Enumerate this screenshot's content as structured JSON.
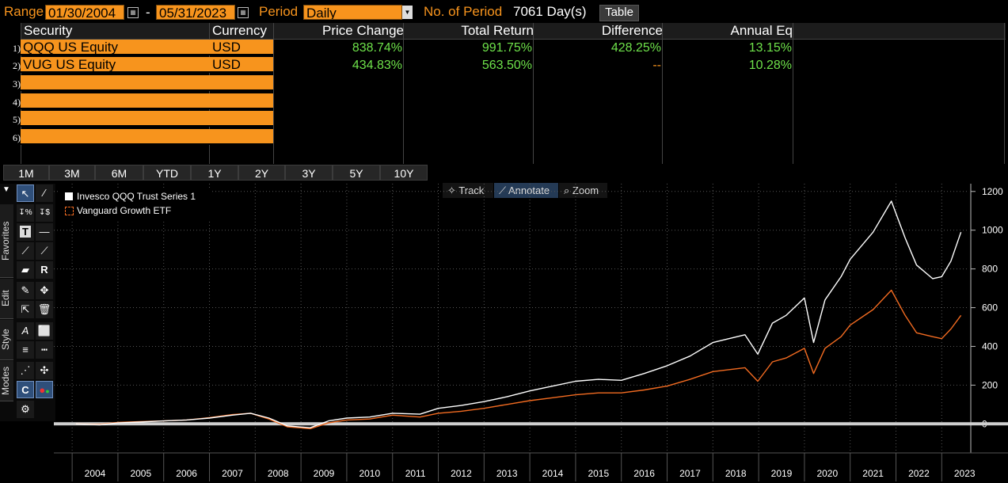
{
  "header": {
    "range_label": "Range",
    "start_date": "01/30/2004",
    "date_sep": "-",
    "end_date": "05/31/2023",
    "period_label": "Period",
    "period_value": "Daily",
    "num_period_label": "No. of Period",
    "num_period_value": "7061 Day(s)",
    "table_button": "Table"
  },
  "table": {
    "columns": [
      "Security",
      "Currency",
      "Price Change",
      "Total Return",
      "Difference",
      "Annual Eq"
    ],
    "rows": [
      {
        "num": "1)",
        "security": "QQQ US Equity",
        "currency": "USD",
        "price_change": "838.74%",
        "total_return": "991.75%",
        "difference": "428.25%",
        "annual_eq": "13.15%"
      },
      {
        "num": "2)",
        "security": "VUG US Equity",
        "currency": "USD",
        "price_change": "434.83%",
        "total_return": "563.50%",
        "difference": "--",
        "annual_eq": "10.28%"
      },
      {
        "num": "3)",
        "security": "",
        "currency": ""
      },
      {
        "num": "4)",
        "security": "",
        "currency": ""
      },
      {
        "num": "5)",
        "security": "",
        "currency": ""
      },
      {
        "num": "6)",
        "security": "",
        "currency": ""
      }
    ]
  },
  "periods": [
    "1M",
    "3M",
    "6M",
    "YTD",
    "1Y",
    "2Y",
    "3Y",
    "5Y",
    "10Y"
  ],
  "chart_controls": {
    "track": "Track",
    "annotate": "Annotate",
    "zoom": "Zoom"
  },
  "side_tabs": [
    "Favorites",
    "Edit",
    "Style",
    "Modes"
  ],
  "toolbar_icons": [
    "cursor-icon",
    "pencil-menu-icon",
    "pct-change-icon",
    "dollar-change-icon",
    "text-icon",
    "line-icon",
    "trend-line-icon",
    "trend-line-2-icon",
    "channel-icon",
    "r-tool-icon",
    "draw-icon",
    "move-icon",
    "pointer-icon",
    "trash-icon",
    "font-icon",
    "color-icon",
    "line-weight-icon",
    "line-style-icon",
    "crosshair-icon",
    "hand-tool-icon",
    "reset-icon",
    "palette-icon",
    "settings-icon"
  ],
  "colors": {
    "accent": "#f7941d",
    "positive": "#6ee24a",
    "series1": "#ffffff",
    "series2": "#f26b21"
  },
  "chart_data": {
    "type": "line",
    "x_ticks": [
      "2004",
      "2005",
      "2006",
      "2007",
      "2008",
      "2009",
      "2010",
      "2011",
      "2012",
      "2013",
      "2014",
      "2015",
      "2016",
      "2017",
      "2018",
      "2019",
      "2020",
      "2021",
      "2022",
      "2023"
    ],
    "y_ticks": [
      "0",
      "200",
      "400",
      "600",
      "800",
      "1000",
      "1200"
    ],
    "ylim": [
      -150,
      1240
    ],
    "xlim": [
      2003.6,
      2023.6
    ],
    "grid": true,
    "legend_position": "top-left",
    "series": [
      {
        "name": "Invesco QQQ Trust Series 1",
        "color": "#ffffff",
        "x": [
          2004.08,
          2004.6,
          2005.0,
          2005.5,
          2006.0,
          2006.5,
          2007.0,
          2007.5,
          2007.9,
          2008.3,
          2008.7,
          2009.2,
          2009.6,
          2010.0,
          2010.5,
          2011.0,
          2011.6,
          2012.0,
          2012.5,
          2013.0,
          2013.5,
          2014.0,
          2014.5,
          2015.0,
          2015.5,
          2016.0,
          2016.5,
          2017.0,
          2017.5,
          2018.0,
          2018.7,
          2018.98,
          2019.3,
          2019.6,
          2020.0,
          2020.2,
          2020.45,
          2020.8,
          2021.0,
          2021.5,
          2021.9,
          2022.2,
          2022.45,
          2022.8,
          2023.0,
          2023.2,
          2023.42
        ],
        "values": [
          0,
          -5,
          5,
          10,
          15,
          20,
          30,
          45,
          55,
          30,
          -10,
          -20,
          15,
          30,
          35,
          55,
          50,
          80,
          95,
          115,
          140,
          170,
          195,
          220,
          230,
          225,
          260,
          300,
          350,
          420,
          460,
          360,
          520,
          560,
          650,
          420,
          640,
          760,
          850,
          990,
          1150,
          960,
          820,
          750,
          760,
          840,
          990
        ]
      },
      {
        "name": "Vanguard Growth ETF",
        "color": "#f26b21",
        "x": [
          2004.08,
          2004.6,
          2005.0,
          2005.5,
          2006.0,
          2006.5,
          2007.0,
          2007.5,
          2007.9,
          2008.3,
          2008.7,
          2009.2,
          2009.6,
          2010.0,
          2010.5,
          2011.0,
          2011.6,
          2012.0,
          2012.5,
          2013.0,
          2013.5,
          2014.0,
          2014.5,
          2015.0,
          2015.5,
          2016.0,
          2016.5,
          2017.0,
          2017.5,
          2018.0,
          2018.7,
          2018.98,
          2019.3,
          2019.6,
          2020.0,
          2020.2,
          2020.45,
          2020.8,
          2021.0,
          2021.5,
          2021.9,
          2022.2,
          2022.45,
          2022.8,
          2023.0,
          2023.2,
          2023.42
        ],
        "values": [
          0,
          -3,
          8,
          12,
          15,
          20,
          32,
          48,
          55,
          25,
          -15,
          -25,
          5,
          20,
          25,
          45,
          35,
          55,
          65,
          80,
          100,
          120,
          135,
          150,
          160,
          160,
          175,
          195,
          230,
          270,
          290,
          220,
          320,
          340,
          390,
          260,
          390,
          450,
          510,
          590,
          690,
          560,
          470,
          450,
          440,
          490,
          560
        ]
      }
    ]
  }
}
